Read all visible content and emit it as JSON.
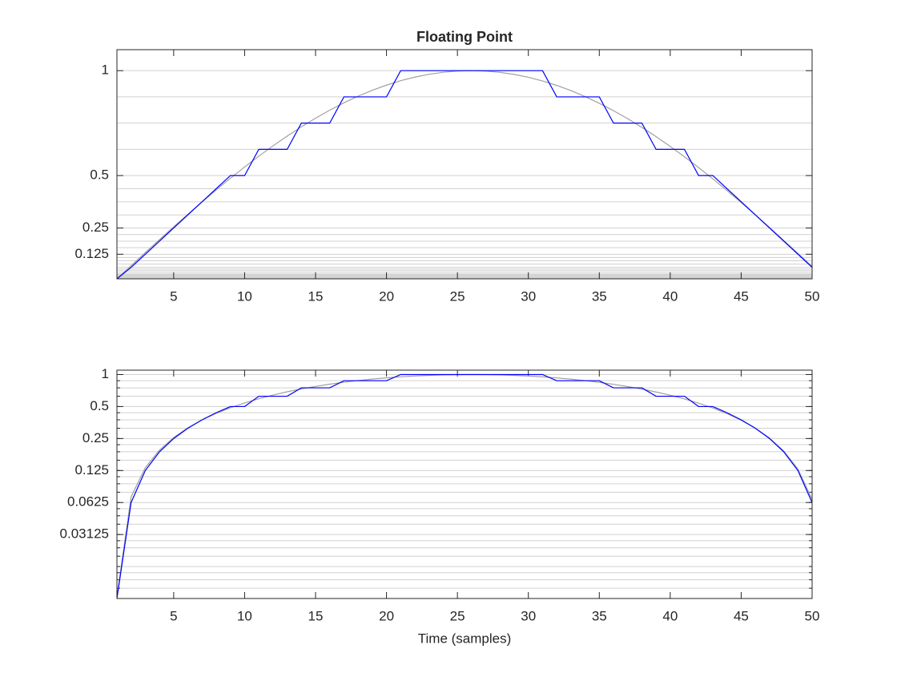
{
  "chart_data": [
    {
      "type": "line",
      "title": "Floating Point",
      "yscale": "linear",
      "x": [
        1,
        2,
        3,
        4,
        5,
        6,
        7,
        8,
        9,
        10,
        11,
        12,
        13,
        14,
        15,
        16,
        17,
        18,
        19,
        20,
        21,
        22,
        23,
        24,
        25,
        26,
        27,
        28,
        29,
        30,
        31,
        32,
        33,
        34,
        35,
        36,
        37,
        38,
        39,
        40,
        41,
        42,
        43,
        44,
        45,
        46,
        47,
        48,
        49,
        50
      ],
      "series": [
        {
          "color": "#a0a0a0",
          "values": [
            0.0081,
            0.0707,
            0.1329,
            0.1945,
            0.2556,
            0.3155,
            0.3743,
            0.4316,
            0.4872,
            0.5408,
            0.5923,
            0.6415,
            0.6882,
            0.7323,
            0.7735,
            0.8117,
            0.8468,
            0.8785,
            0.9065,
            0.931,
            0.9521,
            0.9692,
            0.9829,
            0.9924,
            0.9982,
            1,
            0.9979,
            0.992,
            0.9821,
            0.9684,
            0.9509,
            0.9296,
            0.9048,
            0.8764,
            0.8445,
            0.8094,
            0.771,
            0.7298,
            0.6857,
            0.6389,
            0.5897,
            0.5382,
            0.4845,
            0.4289,
            0.3715,
            0.3126,
            0.2522,
            0.191,
            0.1291,
            0.0669
          ]
        },
        {
          "color": "#0000ff",
          "values": [
            0.0078125,
            0.0625,
            0.125,
            0.1875,
            0.25,
            0.3125,
            0.375,
            0.4375,
            0.5,
            0.5,
            0.625,
            0.625,
            0.625,
            0.75,
            0.75,
            0.75,
            0.875,
            0.875,
            0.875,
            0.875,
            1,
            1,
            1,
            1,
            1,
            1,
            1,
            1,
            1,
            1,
            1,
            0.875,
            0.875,
            0.875,
            0.875,
            0.75,
            0.75,
            0.75,
            0.625,
            0.625,
            0.625,
            0.5,
            0.5,
            0.4375,
            0.375,
            0.3125,
            0.25,
            0.1875,
            0.125,
            0.0625
          ]
        }
      ],
      "xlim": [
        1,
        50
      ],
      "xticks": [
        5,
        10,
        15,
        20,
        25,
        30,
        35,
        40,
        45,
        50
      ],
      "ylim": [
        0.0078125,
        1.1
      ],
      "yticks": [
        0.125,
        0.25,
        0.5,
        1
      ],
      "ygrid": [
        1,
        0.875,
        0.75,
        0.625,
        0.5,
        0.4375,
        0.375,
        0.3125,
        0.25,
        0.21875,
        0.1875,
        0.15625,
        0.125,
        0.109375,
        0.09375,
        0.078125,
        0.0625,
        0.0546875,
        0.046875,
        0.0390625,
        0.03125,
        0.02734375,
        0.0234375,
        0.01953125,
        0.015625,
        0.013671875,
        0.01171875,
        0.009765625,
        0.0078125
      ]
    },
    {
      "type": "line",
      "xlabel": "Time (samples)",
      "yscale": "log",
      "x": [
        1,
        2,
        3,
        4,
        5,
        6,
        7,
        8,
        9,
        10,
        11,
        12,
        13,
        14,
        15,
        16,
        17,
        18,
        19,
        20,
        21,
        22,
        23,
        24,
        25,
        26,
        27,
        28,
        29,
        30,
        31,
        32,
        33,
        34,
        35,
        36,
        37,
        38,
        39,
        40,
        41,
        42,
        43,
        44,
        45,
        46,
        47,
        48,
        49,
        50
      ],
      "series": [
        {
          "color": "#a0a0a0",
          "values": [
            0.0081,
            0.0707,
            0.1329,
            0.1945,
            0.2556,
            0.3155,
            0.3743,
            0.4316,
            0.4872,
            0.5408,
            0.5923,
            0.6415,
            0.6882,
            0.7323,
            0.7735,
            0.8117,
            0.8468,
            0.8785,
            0.9065,
            0.931,
            0.9521,
            0.9692,
            0.9829,
            0.9924,
            0.9982,
            1,
            0.9979,
            0.992,
            0.9821,
            0.9684,
            0.9509,
            0.9296,
            0.9048,
            0.8764,
            0.8445,
            0.8094,
            0.771,
            0.7298,
            0.6857,
            0.6389,
            0.5897,
            0.5382,
            0.4845,
            0.4289,
            0.3715,
            0.3126,
            0.2522,
            0.191,
            0.1291,
            0.0669
          ]
        },
        {
          "color": "#0000ff",
          "values": [
            0.0078125,
            0.0625,
            0.125,
            0.1875,
            0.25,
            0.3125,
            0.375,
            0.4375,
            0.5,
            0.5,
            0.625,
            0.625,
            0.625,
            0.75,
            0.75,
            0.75,
            0.875,
            0.875,
            0.875,
            0.875,
            1,
            1,
            1,
            1,
            1,
            1,
            1,
            1,
            1,
            1,
            1,
            0.875,
            0.875,
            0.875,
            0.875,
            0.75,
            0.75,
            0.75,
            0.625,
            0.625,
            0.625,
            0.5,
            0.5,
            0.4375,
            0.375,
            0.3125,
            0.25,
            0.1875,
            0.125,
            0.0625
          ]
        }
      ],
      "xlim": [
        1,
        50
      ],
      "xticks": [
        5,
        10,
        15,
        20,
        25,
        30,
        35,
        40,
        45,
        50
      ],
      "ylim": [
        0.0078125,
        1.1
      ],
      "yticks": [
        0.03125,
        0.0625,
        0.125,
        0.25,
        0.5,
        1
      ],
      "ygrid": [
        1,
        0.875,
        0.75,
        0.625,
        0.5,
        0.4375,
        0.375,
        0.3125,
        0.25,
        0.21875,
        0.1875,
        0.15625,
        0.125,
        0.109375,
        0.09375,
        0.078125,
        0.0625,
        0.0546875,
        0.046875,
        0.0390625,
        0.03125,
        0.02734375,
        0.0234375,
        0.01953125,
        0.015625,
        0.013671875,
        0.01171875,
        0.009765625,
        0.0078125
      ]
    }
  ]
}
